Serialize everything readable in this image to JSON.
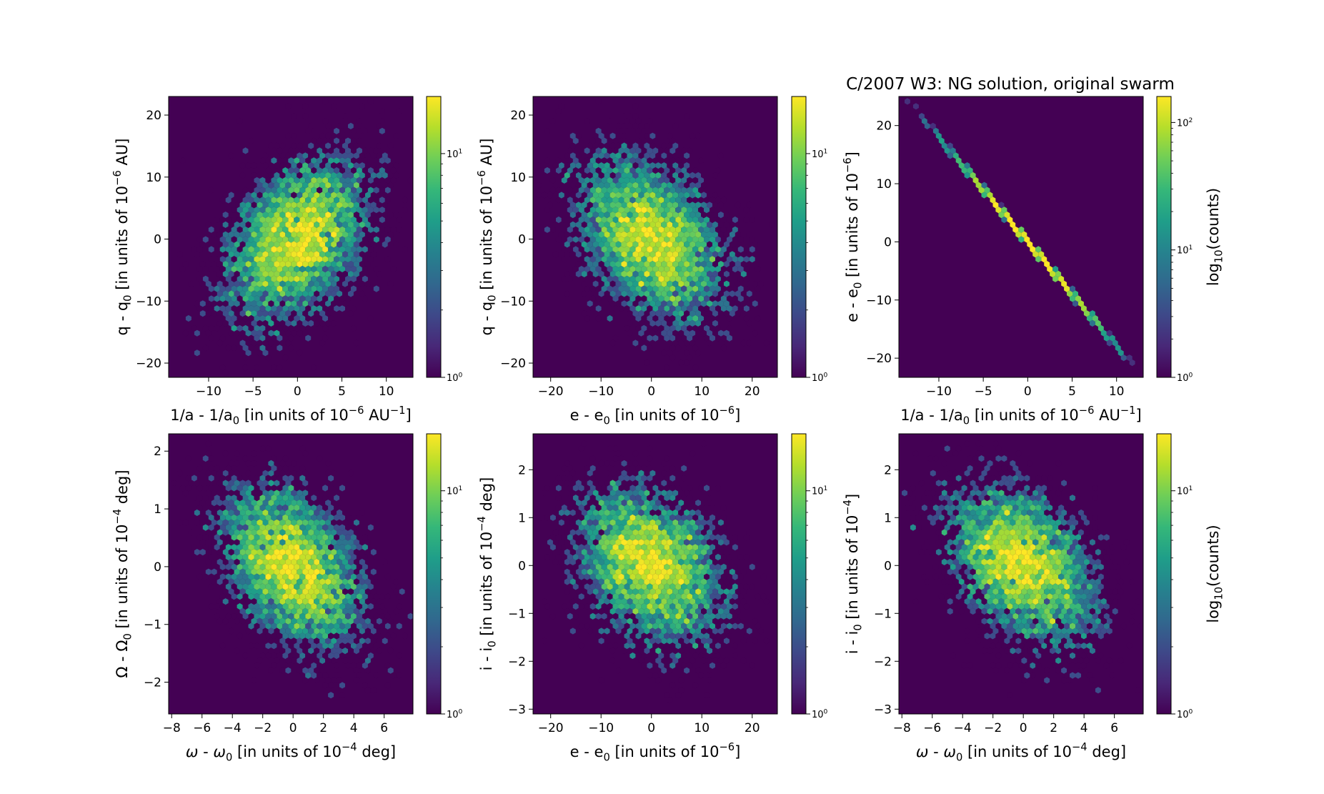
{
  "figure": {
    "title": "C/2007 W3: NG solution, original swarm",
    "cmap": {
      "name": "viridis",
      "background": "#440154",
      "stops": [
        "#440154",
        "#482878",
        "#3e4989",
        "#31688e",
        "#26828e",
        "#1f9e89",
        "#35b779",
        "#6ece58",
        "#b5de2b",
        "#fde725"
      ]
    }
  },
  "chart_data": [
    {
      "type": "heatmap",
      "subtype": "hexbin",
      "xlabel": "1/a - 1/a$_0$ [in units of 10$^{-6}$ AU$^{-1}$]",
      "ylabel": "q - q$_0$ [in units of 10$^{-6}$ AU]",
      "xlim": [
        -14.5,
        13
      ],
      "ylim": [
        -22.3,
        23
      ],
      "xticks": [
        -10,
        -5,
        0,
        5,
        10
      ],
      "yticks": [
        -20,
        -10,
        0,
        10,
        20
      ],
      "correlation": 0.4,
      "sd_x": 4.1,
      "sd_y": 6.8,
      "colorbar": {
        "scale": "log",
        "range": [
          1,
          18
        ],
        "ticks": [
          1,
          10
        ],
        "label": ""
      },
      "points": 5000,
      "seed": 11
    },
    {
      "type": "heatmap",
      "subtype": "hexbin",
      "xlabel": "e - e$_0$ [in units of 10$^{-6}$]",
      "ylabel": "q - q$_0$ [in units of 10$^{-6}$ AU]",
      "xlim": [
        -23.5,
        25
      ],
      "ylim": [
        -22.3,
        23
      ],
      "xticks": [
        -20,
        -10,
        0,
        10,
        20
      ],
      "yticks": [
        -20,
        -10,
        0,
        10,
        20
      ],
      "correlation": -0.4,
      "sd_x": 7.4,
      "sd_y": 6.8,
      "colorbar": {
        "scale": "log",
        "range": [
          1,
          18
        ],
        "ticks": [
          1,
          10
        ],
        "label": ""
      },
      "points": 5000,
      "seed": 23
    },
    {
      "type": "heatmap",
      "subtype": "hexbin",
      "xlabel": "1/a - 1/a$_0$ [in units of 10$^{-6}$ AU$^{-1}$]",
      "ylabel": "e - e$_0$ [in units of 10$^{-6}$]",
      "xlim": [
        -14.5,
        13
      ],
      "ylim": [
        -23.3,
        25
      ],
      "xticks": [
        -10,
        -5,
        0,
        5,
        10
      ],
      "yticks": [
        -20,
        -10,
        0,
        10,
        20
      ],
      "correlation": -0.9999,
      "slope": -1.8,
      "sd_x": 4.1,
      "sd_y": 7.4,
      "colorbar": {
        "scale": "log",
        "range": [
          1,
          160
        ],
        "ticks": [
          1,
          10,
          100
        ],
        "label": "log$_{10}$(counts)"
      },
      "points": 5000,
      "seed": 37
    },
    {
      "type": "heatmap",
      "subtype": "hexbin",
      "xlabel": "$\\omega$ - $\\omega_0$ [in units of 10$^{-4}$ deg]",
      "ylabel": "$\\Omega$ - $\\Omega_0$ [in units of 10$^{-4}$ deg]",
      "xlim": [
        -8.2,
        7.9
      ],
      "ylim": [
        -2.55,
        2.3
      ],
      "xticks": [
        -8,
        -6,
        -4,
        -2,
        0,
        2,
        4,
        6
      ],
      "yticks": [
        -2,
        -1,
        0,
        1,
        2
      ],
      "correlation": -0.42,
      "sd_x": 2.4,
      "sd_y": 0.72,
      "colorbar": {
        "scale": "log",
        "range": [
          1,
          18
        ],
        "ticks": [
          1,
          10
        ],
        "label": ""
      },
      "points": 5000,
      "seed": 41
    },
    {
      "type": "heatmap",
      "subtype": "hexbin",
      "xlabel": "e - e$_0$ [in units of 10$^{-6}$]",
      "ylabel": "i - i$_0$ [in units of 10$^{-4}$ deg]",
      "xlim": [
        -23.5,
        25
      ],
      "ylim": [
        -3.1,
        2.75
      ],
      "xticks": [
        -20,
        -10,
        0,
        10,
        20
      ],
      "yticks": [
        -3,
        -2,
        -1,
        0,
        1,
        2
      ],
      "correlation": -0.3,
      "sd_x": 7.4,
      "sd_y": 0.83,
      "colorbar": {
        "scale": "log",
        "range": [
          1,
          18
        ],
        "ticks": [
          1,
          10
        ],
        "label": ""
      },
      "points": 5000,
      "seed": 53
    },
    {
      "type": "heatmap",
      "subtype": "hexbin",
      "xlabel": "$\\omega$ - $\\omega_0$ [in units of 10$^{-4}$ deg]",
      "ylabel": "i - i$_0$ [in units of 10$^{-4}$]",
      "xlim": [
        -8.2,
        7.9
      ],
      "ylim": [
        -3.1,
        2.75
      ],
      "xticks": [
        -8,
        -6,
        -4,
        -2,
        0,
        2,
        4,
        6
      ],
      "yticks": [
        -3,
        -2,
        -1,
        0,
        1,
        2
      ],
      "correlation": -0.38,
      "sd_x": 2.4,
      "sd_y": 0.83,
      "colorbar": {
        "scale": "log",
        "range": [
          1,
          18
        ],
        "ticks": [
          1,
          10
        ],
        "label": "log$_{10}$(counts)"
      },
      "points": 5000,
      "seed": 67
    }
  ]
}
